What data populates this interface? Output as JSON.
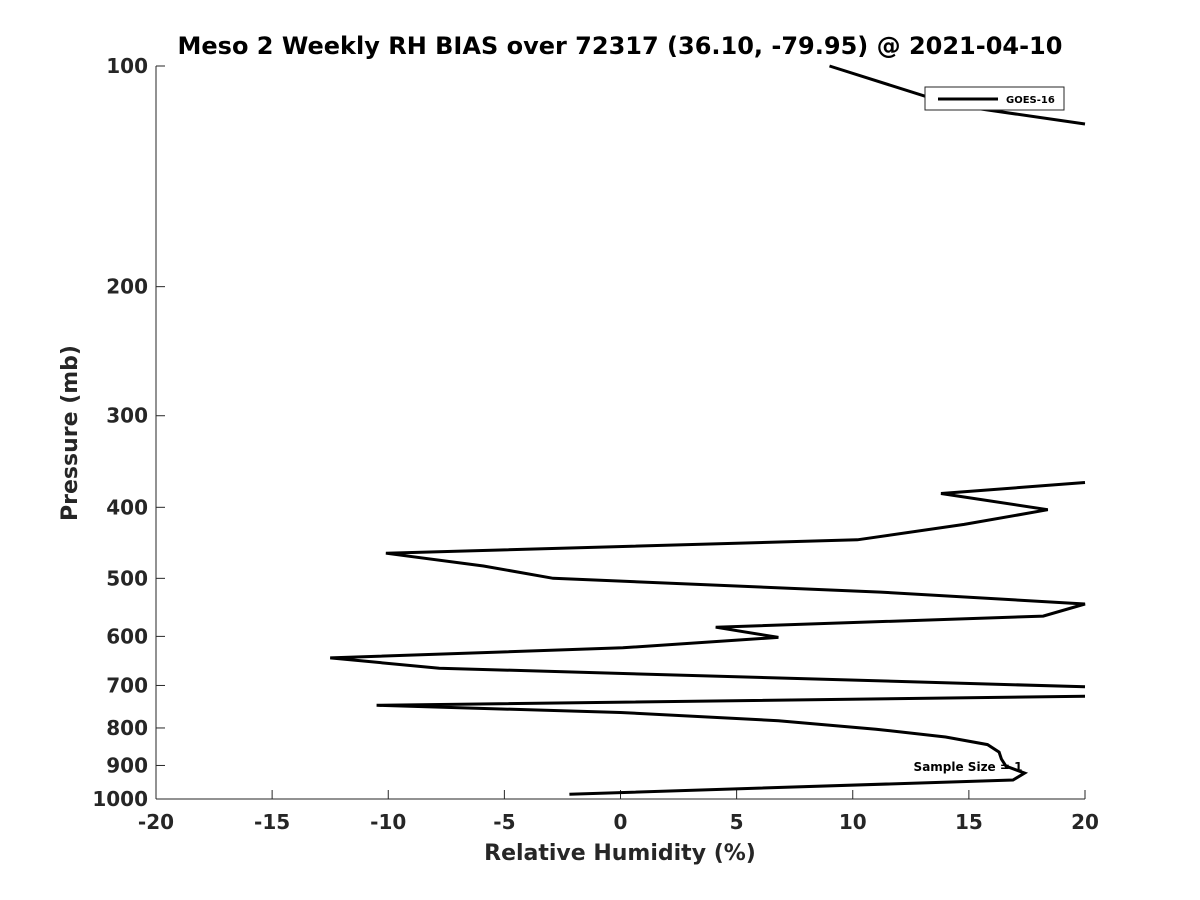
{
  "chart_data": {
    "type": "line",
    "title": "Meso 2 Weekly RH BIAS over 72317 (36.10, -79.95) @ 2021-04-10",
    "xlabel": "Relative Humidity (%)",
    "ylabel": "Pressure (mb)",
    "xlim": [
      -20,
      20
    ],
    "ylim": [
      100,
      1000
    ],
    "yscale": "log",
    "y_reversed": true,
    "grid": false,
    "legend_position": "top-right",
    "x_ticks": [
      "-20",
      "-15",
      "-10",
      "-5",
      "0",
      "5",
      "10",
      "15",
      "20"
    ],
    "y_ticks": [
      "100",
      "200",
      "300",
      "400",
      "500",
      "600",
      "700",
      "800",
      "900",
      "1000"
    ],
    "annotation": "Sample Size = 1",
    "series": [
      {
        "name": "GOES-16",
        "color": "#000000",
        "x": [
          9.0,
          14.3,
          20.0,
          null,
          20.0,
          13.8,
          18.4,
          14.8,
          10.2,
          -10.1,
          -5.9,
          -2.9,
          11.2,
          20.0,
          18.2,
          4.1,
          6.8,
          0.1,
          -12.5,
          -7.8,
          20.0,
          null,
          20.0,
          -10.5,
          0.0,
          6.8,
          11.0,
          14.0,
          15.8,
          16.3,
          16.4,
          16.6,
          17.4,
          16.9,
          -2.2
        ],
        "y": [
          100,
          113,
          120,
          null,
          370,
          383,
          403,
          422,
          443,
          462,
          481,
          500,
          522,
          542,
          563,
          583,
          602,
          622,
          642,
          663,
          703,
          null,
          724,
          745,
          762,
          782,
          803,
          823,
          843,
          863,
          882,
          902,
          922,
          942,
          985
        ]
      }
    ]
  }
}
